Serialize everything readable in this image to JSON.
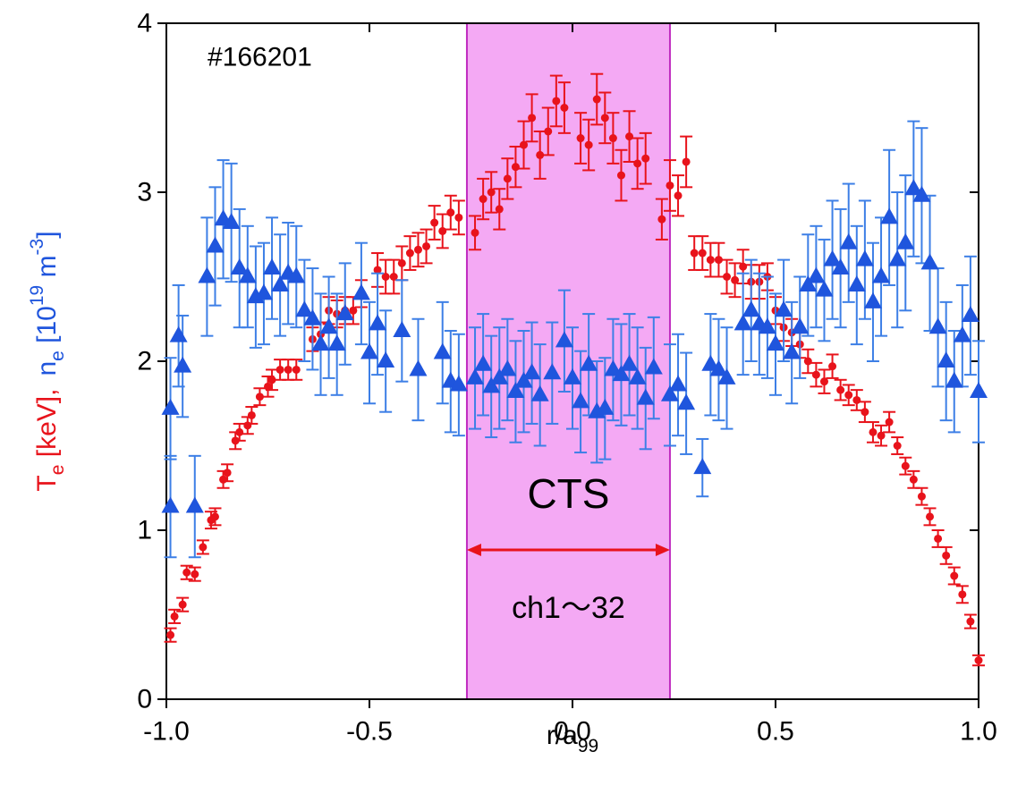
{
  "chart_data": {
    "type": "scatter",
    "xlabel": [
      "r/a",
      "99"
    ],
    "ylabel": {
      "te": [
        "T",
        "e",
        " [keV],"
      ],
      "ne": [
        "n",
        "e",
        " [10",
        "19",
        " m",
        "-3",
        "]"
      ]
    },
    "annotations": {
      "shot": "#166201",
      "region": "CTS",
      "channels": "ch1～32"
    },
    "shaded_region": {
      "xlim": [
        -0.26,
        0.24
      ],
      "color": "#f4a9f4",
      "edge_color": "#c02cc0",
      "arrow_color": "#e8131b"
    },
    "xlim": [
      -1,
      1
    ],
    "ylim": [
      0,
      4
    ],
    "xticks": [
      {
        "value": -1,
        "label": "-1.0"
      },
      -0.5,
      {
        "value": 0,
        "label": "0.0"
      },
      0.5,
      {
        "value": 1,
        "label": "1.0"
      }
    ],
    "yticks": [
      0,
      1,
      2,
      3,
      4
    ],
    "series": [
      {
        "name": "Te",
        "color": "#e8131b",
        "marker": "circle",
        "x": [
          -0.99,
          -0.98,
          -0.96,
          -0.95,
          -0.93,
          -0.91,
          -0.89,
          -0.88,
          -0.86,
          -0.85,
          -0.83,
          -0.82,
          -0.8,
          -0.79,
          -0.77,
          -0.75,
          -0.74,
          -0.72,
          -0.7,
          -0.68,
          -0.64,
          -0.62,
          -0.6,
          -0.58,
          -0.56,
          -0.54,
          -0.52,
          -0.48,
          -0.46,
          -0.44,
          -0.42,
          -0.4,
          -0.38,
          -0.36,
          -0.34,
          -0.32,
          -0.3,
          -0.28,
          -0.24,
          -0.22,
          -0.2,
          -0.18,
          -0.16,
          -0.14,
          -0.12,
          -0.1,
          -0.08,
          -0.06,
          -0.04,
          -0.02,
          0.02,
          0.04,
          0.06,
          0.08,
          0.1,
          0.12,
          0.14,
          0.16,
          0.18,
          0.22,
          0.24,
          0.26,
          0.28,
          0.3,
          0.32,
          0.34,
          0.36,
          0.38,
          0.4,
          0.42,
          0.44,
          0.46,
          0.48,
          0.5,
          0.52,
          0.54,
          0.56,
          0.58,
          0.6,
          0.62,
          0.64,
          0.66,
          0.68,
          0.7,
          0.72,
          0.74,
          0.76,
          0.78,
          0.8,
          0.82,
          0.84,
          0.86,
          0.88,
          0.9,
          0.92,
          0.94,
          0.96,
          0.98,
          1.0
        ],
        "values": [
          0.38,
          0.49,
          0.56,
          0.75,
          0.74,
          0.9,
          1.06,
          1.08,
          1.3,
          1.34,
          1.53,
          1.58,
          1.62,
          1.68,
          1.79,
          1.85,
          1.89,
          1.95,
          1.95,
          1.95,
          2.13,
          2.16,
          2.3,
          2.28,
          2.3,
          2.3,
          2.4,
          2.54,
          2.5,
          2.5,
          2.58,
          2.64,
          2.66,
          2.68,
          2.82,
          2.77,
          2.88,
          2.85,
          2.76,
          2.96,
          3.0,
          2.9,
          3.08,
          3.15,
          3.28,
          3.44,
          3.22,
          3.36,
          3.54,
          3.5,
          3.32,
          3.28,
          3.55,
          3.44,
          3.32,
          3.1,
          3.33,
          3.17,
          3.2,
          2.84,
          3.04,
          2.98,
          3.18,
          2.64,
          2.64,
          2.6,
          2.6,
          2.5,
          2.48,
          2.56,
          2.47,
          2.47,
          2.5,
          2.3,
          2.2,
          2.17,
          2.1,
          2.0,
          1.92,
          1.88,
          1.97,
          1.83,
          1.8,
          1.77,
          1.7,
          1.58,
          1.56,
          1.64,
          1.5,
          1.38,
          1.3,
          1.2,
          1.08,
          0.95,
          0.85,
          0.73,
          0.62,
          0.46,
          0.23
        ],
        "errors": [
          0.04,
          0.04,
          0.04,
          0.04,
          0.04,
          0.04,
          0.05,
          0.05,
          0.05,
          0.05,
          0.05,
          0.05,
          0.05,
          0.05,
          0.05,
          0.06,
          0.06,
          0.06,
          0.06,
          0.06,
          0.07,
          0.07,
          0.08,
          0.08,
          0.08,
          0.08,
          0.08,
          0.1,
          0.1,
          0.1,
          0.1,
          0.1,
          0.1,
          0.1,
          0.1,
          0.1,
          0.1,
          0.1,
          0.1,
          0.12,
          0.12,
          0.12,
          0.12,
          0.12,
          0.14,
          0.14,
          0.14,
          0.14,
          0.15,
          0.15,
          0.15,
          0.15,
          0.15,
          0.15,
          0.15,
          0.15,
          0.15,
          0.15,
          0.15,
          0.12,
          0.15,
          0.12,
          0.15,
          0.1,
          0.1,
          0.1,
          0.1,
          0.1,
          0.1,
          0.1,
          0.1,
          0.1,
          0.08,
          0.08,
          0.08,
          0.08,
          0.08,
          0.07,
          0.07,
          0.07,
          0.07,
          0.06,
          0.06,
          0.06,
          0.06,
          0.06,
          0.06,
          0.06,
          0.05,
          0.05,
          0.05,
          0.05,
          0.05,
          0.05,
          0.05,
          0.05,
          0.05,
          0.04,
          0.03
        ]
      },
      {
        "name": "ne",
        "color": "#1f55dd",
        "marker": "triangle",
        "x": [
          -0.99,
          -0.99,
          -0.97,
          -0.96,
          -0.93,
          -0.9,
          -0.88,
          -0.86,
          -0.84,
          -0.82,
          -0.8,
          -0.78,
          -0.76,
          -0.74,
          -0.72,
          -0.7,
          -0.68,
          -0.66,
          -0.64,
          -0.62,
          -0.6,
          -0.58,
          -0.56,
          -0.52,
          -0.5,
          -0.48,
          -0.46,
          -0.42,
          -0.38,
          -0.32,
          -0.3,
          -0.28,
          -0.24,
          -0.22,
          -0.2,
          -0.18,
          -0.16,
          -0.14,
          -0.12,
          -0.1,
          -0.08,
          -0.05,
          -0.02,
          0.0,
          0.02,
          0.04,
          0.06,
          0.08,
          0.1,
          0.12,
          0.14,
          0.16,
          0.18,
          0.2,
          0.24,
          0.26,
          0.28,
          0.32,
          0.34,
          0.36,
          0.38,
          0.42,
          0.44,
          0.46,
          0.48,
          0.5,
          0.52,
          0.54,
          0.56,
          0.58,
          0.6,
          0.62,
          0.64,
          0.66,
          0.68,
          0.7,
          0.72,
          0.74,
          0.76,
          0.78,
          0.8,
          0.82,
          0.84,
          0.86,
          0.88,
          0.9,
          0.92,
          0.94,
          0.96,
          0.98,
          1.0
        ],
        "values": [
          1.14,
          1.72,
          2.15,
          1.97,
          1.14,
          2.5,
          2.68,
          2.84,
          2.82,
          2.55,
          2.5,
          2.38,
          2.4,
          2.55,
          2.45,
          2.52,
          2.5,
          2.3,
          2.25,
          2.1,
          2.2,
          2.1,
          2.28,
          2.4,
          2.05,
          2.22,
          2.0,
          2.18,
          1.95,
          2.05,
          1.88,
          1.86,
          1.9,
          1.98,
          1.85,
          1.9,
          1.95,
          1.82,
          1.88,
          1.93,
          1.8,
          1.93,
          2.12,
          1.9,
          1.76,
          1.98,
          1.7,
          1.72,
          1.95,
          1.92,
          1.98,
          1.9,
          1.78,
          1.96,
          1.8,
          1.86,
          1.75,
          1.37,
          1.98,
          1.95,
          1.9,
          2.22,
          2.3,
          2.22,
          2.2,
          2.1,
          2.3,
          2.05,
          2.2,
          2.45,
          2.5,
          2.42,
          2.6,
          2.55,
          2.7,
          2.45,
          2.6,
          2.35,
          2.5,
          2.85,
          2.6,
          2.7,
          3.02,
          2.98,
          2.58,
          2.2,
          2.0,
          1.88,
          2.15,
          2.27,
          1.82
        ],
        "errors": [
          0.3,
          0.3,
          0.3,
          0.3,
          0.3,
          0.35,
          0.35,
          0.35,
          0.35,
          0.35,
          0.3,
          0.3,
          0.3,
          0.3,
          0.3,
          0.3,
          0.3,
          0.3,
          0.3,
          0.3,
          0.3,
          0.3,
          0.3,
          0.3,
          0.3,
          0.3,
          0.3,
          0.3,
          0.3,
          0.3,
          0.3,
          0.3,
          0.3,
          0.3,
          0.3,
          0.3,
          0.3,
          0.3,
          0.3,
          0.3,
          0.3,
          0.3,
          0.3,
          0.3,
          0.3,
          0.3,
          0.3,
          0.3,
          0.3,
          0.3,
          0.3,
          0.3,
          0.3,
          0.3,
          0.3,
          0.3,
          0.3,
          0.17,
          0.3,
          0.3,
          0.3,
          0.3,
          0.3,
          0.3,
          0.3,
          0.3,
          0.3,
          0.3,
          0.3,
          0.3,
          0.3,
          0.3,
          0.35,
          0.35,
          0.35,
          0.35,
          0.35,
          0.35,
          0.35,
          0.4,
          0.4,
          0.4,
          0.4,
          0.4,
          0.4,
          0.35,
          0.35,
          0.3,
          0.3,
          0.35,
          0.3
        ]
      }
    ]
  }
}
